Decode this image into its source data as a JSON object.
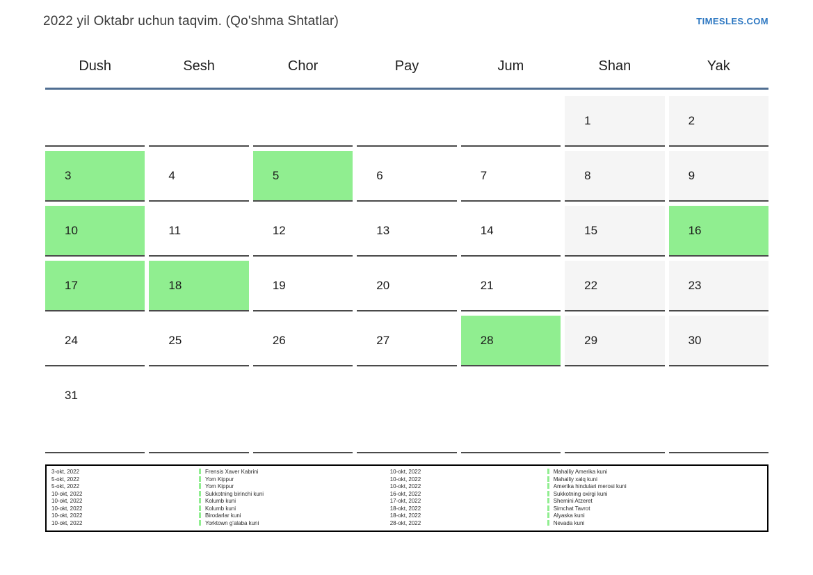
{
  "header": {
    "title": "2022 yil Oktabr uchun taqvim. (Qo'shma Shtatlar)",
    "logo": "TIMESLES.COM"
  },
  "colors": {
    "accent_blue": "#2e78c2",
    "header_rule": "#506e92",
    "holiday_green": "#90ee90",
    "weekend_gray": "#f5f5f5",
    "cell_border": "#4a4a4a"
  },
  "calendar": {
    "weekdays": [
      "Dush",
      "Sesh",
      "Chor",
      "Pay",
      "Jum",
      "Shan",
      "Yak"
    ],
    "weeks": [
      [
        {
          "day": "",
          "type": "empty"
        },
        {
          "day": "",
          "type": "empty"
        },
        {
          "day": "",
          "type": "empty"
        },
        {
          "day": "",
          "type": "empty"
        },
        {
          "day": "",
          "type": "empty"
        },
        {
          "day": "1",
          "type": "weekend"
        },
        {
          "day": "2",
          "type": "weekend"
        }
      ],
      [
        {
          "day": "3",
          "type": "holiday"
        },
        {
          "day": "4",
          "type": "normal"
        },
        {
          "day": "5",
          "type": "holiday"
        },
        {
          "day": "6",
          "type": "normal"
        },
        {
          "day": "7",
          "type": "normal"
        },
        {
          "day": "8",
          "type": "weekend"
        },
        {
          "day": "9",
          "type": "weekend"
        }
      ],
      [
        {
          "day": "10",
          "type": "holiday"
        },
        {
          "day": "11",
          "type": "normal"
        },
        {
          "day": "12",
          "type": "normal"
        },
        {
          "day": "13",
          "type": "normal"
        },
        {
          "day": "14",
          "type": "normal"
        },
        {
          "day": "15",
          "type": "weekend"
        },
        {
          "day": "16",
          "type": "holiday"
        }
      ],
      [
        {
          "day": "17",
          "type": "holiday"
        },
        {
          "day": "18",
          "type": "holiday"
        },
        {
          "day": "19",
          "type": "normal"
        },
        {
          "day": "20",
          "type": "normal"
        },
        {
          "day": "21",
          "type": "normal"
        },
        {
          "day": "22",
          "type": "weekend"
        },
        {
          "day": "23",
          "type": "weekend"
        }
      ],
      [
        {
          "day": "24",
          "type": "normal"
        },
        {
          "day": "25",
          "type": "normal"
        },
        {
          "day": "26",
          "type": "normal"
        },
        {
          "day": "27",
          "type": "normal"
        },
        {
          "day": "28",
          "type": "holiday"
        },
        {
          "day": "29",
          "type": "weekend"
        },
        {
          "day": "30",
          "type": "weekend"
        }
      ],
      [
        {
          "day": "31",
          "type": "normal"
        },
        {
          "day": "",
          "type": "empty"
        },
        {
          "day": "",
          "type": "empty"
        },
        {
          "day": "",
          "type": "empty"
        },
        {
          "day": "",
          "type": "empty"
        },
        {
          "day": "",
          "type": "empty"
        },
        {
          "day": "",
          "type": "empty"
        }
      ]
    ]
  },
  "legend": {
    "columns": [
      {
        "entries": [
          {
            "date": "3-okt, 2022",
            "name": "Frensis Xaver Kabrini"
          },
          {
            "date": "5-okt, 2022",
            "name": "Yom Kippur"
          },
          {
            "date": "5-okt, 2022",
            "name": "Yom Kippur"
          },
          {
            "date": "10-okt, 2022",
            "name": "Sukkotning birinchi kuni"
          },
          {
            "date": "10-okt, 2022",
            "name": "Kolumb kuni"
          },
          {
            "date": "10-okt, 2022",
            "name": "Kolumb kuni"
          },
          {
            "date": "10-okt, 2022",
            "name": "Birodarlar kuni"
          },
          {
            "date": "10-okt, 2022",
            "name": "Yorktown g'alaba kuni"
          }
        ]
      },
      {
        "entries": [
          {
            "date": "10-okt, 2022",
            "name": "Mahalliy Amerika kuni"
          },
          {
            "date": "10-okt, 2022",
            "name": "Mahalliy xalq kuni"
          },
          {
            "date": "10-okt, 2022",
            "name": "Amerika hindulari merosi kuni"
          },
          {
            "date": "16-okt, 2022",
            "name": "Sukkotning oxirgi kuni"
          },
          {
            "date": "17-okt, 2022",
            "name": "Shemini Atzeret"
          },
          {
            "date": "18-okt, 2022",
            "name": "Simchat Tavrot"
          },
          {
            "date": "18-okt, 2022",
            "name": "Alyaska kuni"
          },
          {
            "date": "28-okt, 2022",
            "name": "Nevada kuni"
          }
        ]
      }
    ]
  }
}
